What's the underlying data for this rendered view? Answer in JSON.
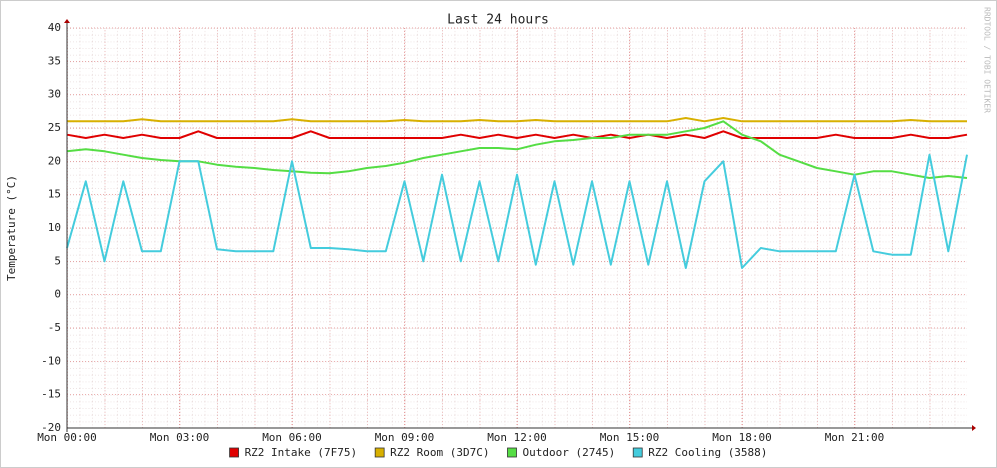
{
  "chart_data": {
    "type": "line",
    "title": "Last 24 hours",
    "y_label": "Temperature (°C)",
    "watermark": "RRDTOOL / TOBI OETIKER",
    "xlim": [
      0,
      24
    ],
    "xticks": [
      {
        "value": 0,
        "label": "Mon 00:00"
      },
      {
        "value": 3,
        "label": "Mon 03:00"
      },
      {
        "value": 6,
        "label": "Mon 06:00"
      },
      {
        "value": 9,
        "label": "Mon 09:00"
      },
      {
        "value": 12,
        "label": "Mon 12:00"
      },
      {
        "value": 15,
        "label": "Mon 15:00"
      },
      {
        "value": 18,
        "label": "Mon 18:00"
      },
      {
        "value": 21,
        "label": "Mon 21:00"
      }
    ],
    "ylim": [
      -20,
      40
    ],
    "yticks": [
      -20,
      -15,
      -10,
      -5,
      0,
      5,
      10,
      15,
      20,
      25,
      30,
      35,
      40
    ],
    "grid": true,
    "legend": "bottom",
    "x": [
      0,
      0.5,
      1,
      1.5,
      2,
      2.5,
      3,
      3.5,
      4,
      4.5,
      5,
      5.5,
      6,
      6.5,
      7,
      7.5,
      8,
      8.5,
      9,
      9.5,
      10,
      10.5,
      11,
      11.5,
      12,
      12.5,
      13,
      13.5,
      14,
      14.5,
      15,
      15.5,
      16,
      16.5,
      17,
      17.5,
      18,
      18.5,
      19,
      19.5,
      20,
      20.5,
      21,
      21.5,
      22,
      22.5,
      23,
      23.5,
      24
    ],
    "series": [
      {
        "name": "RZ2 Intake (7F75)",
        "color": "#e00000",
        "values": [
          24,
          23.5,
          24,
          23.5,
          24,
          23.5,
          23.5,
          24.5,
          23.5,
          23.5,
          23.5,
          23.5,
          23.5,
          24.5,
          23.5,
          23.5,
          23.5,
          23.5,
          23.5,
          23.5,
          23.5,
          24,
          23.5,
          24,
          23.5,
          24,
          23.5,
          24,
          23.5,
          24,
          23.5,
          24,
          23.5,
          24,
          23.5,
          24.5,
          23.5,
          23.5,
          23.5,
          23.5,
          23.5,
          24,
          23.5,
          23.5,
          23.5,
          24,
          23.5,
          23.5,
          24
        ]
      },
      {
        "name": "RZ2 Room (3D7C)",
        "color": "#d8b000",
        "values": [
          26,
          26,
          26,
          26,
          26.3,
          26,
          26,
          26,
          26,
          26,
          26,
          26,
          26.3,
          26,
          26,
          26,
          26,
          26,
          26.2,
          26,
          26,
          26,
          26.2,
          26,
          26,
          26.2,
          26,
          26,
          26,
          26,
          26,
          26,
          26,
          26.5,
          26,
          26.5,
          26,
          26,
          26,
          26,
          26,
          26,
          26,
          26,
          26,
          26.2,
          26,
          26,
          26
        ]
      },
      {
        "name": "Outdoor (2745)",
        "color": "#55dd44",
        "values": [
          21.5,
          21.8,
          21.5,
          21,
          20.5,
          20.2,
          20,
          20,
          19.5,
          19.2,
          19,
          18.7,
          18.5,
          18.3,
          18.2,
          18.5,
          19,
          19.3,
          19.8,
          20.5,
          21,
          21.5,
          22,
          22,
          21.8,
          22.5,
          23,
          23.2,
          23.5,
          23.5,
          24,
          24,
          24,
          24.5,
          25,
          26,
          24,
          23,
          21,
          20,
          19,
          18.5,
          18,
          18.5,
          18.5,
          18,
          17.5,
          17.8,
          17.5
        ]
      },
      {
        "name": "RZ2 Cooling (3588)",
        "color": "#44ccdd",
        "values": [
          7,
          17,
          5,
          17,
          6.5,
          6.5,
          20,
          20,
          6.8,
          6.5,
          6.5,
          6.5,
          20,
          7,
          7,
          6.8,
          6.5,
          6.5,
          17,
          5,
          18,
          5,
          17,
          5,
          18,
          4.5,
          17,
          4.5,
          17,
          4.5,
          17,
          4.5,
          17,
          4,
          17,
          20,
          4,
          7,
          6.5,
          6.5,
          6.5,
          6.5,
          18,
          6.5,
          6,
          6,
          21,
          6.5,
          21
        ]
      }
    ]
  }
}
